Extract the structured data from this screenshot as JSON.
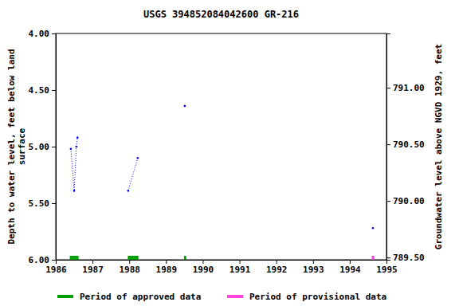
{
  "chart_data": {
    "type": "line",
    "title": "USGS 394852084042600 GR-216",
    "ylabel": "Depth to water level, feet below land\nsurface",
    "y2label": "Groundwater level above NGVD 1929, feet",
    "xlim": [
      1986,
      1995
    ],
    "xticks": [
      1986,
      1987,
      1988,
      1989,
      1990,
      1991,
      1992,
      1993,
      1994,
      1995
    ],
    "ylim": [
      6.0,
      4.0
    ],
    "yticks": [
      {
        "value": 4.0,
        "label": "4.00"
      },
      {
        "value": 4.5,
        "label": "4.50"
      },
      {
        "value": 5.0,
        "label": "5.00"
      },
      {
        "value": 5.5,
        "label": "5.50"
      },
      {
        "value": 6.0,
        "label": "6.00"
      }
    ],
    "y2lim": [
      789.48,
      791.48
    ],
    "y2ticks": [
      {
        "value": 789.5,
        "label": "789.50"
      },
      {
        "value": 790.0,
        "label": "790.00"
      },
      {
        "value": 790.5,
        "label": "790.50"
      },
      {
        "value": 791.0,
        "label": "791.00"
      }
    ],
    "grid": false,
    "series": [
      {
        "color": "#0000ff",
        "marker": "point",
        "line_style": "dotted",
        "x": [
          1986.41,
          1986.5,
          1986.56,
          1986.59
        ],
        "values": [
          5.02,
          5.39,
          5.0,
          4.92
        ]
      },
      {
        "color": "#0000ff",
        "marker": "point",
        "line_style": "dotted",
        "x": [
          1987.97,
          1988.23
        ],
        "values": [
          5.39,
          5.1
        ]
      },
      {
        "color": "#0000ff",
        "marker": "point",
        "line_style": "dotted",
        "x": [
          1989.51
        ],
        "values": [
          4.64
        ]
      },
      {
        "color": "#0000ff",
        "marker": "point",
        "line_style": "dotted",
        "x": [
          1994.63
        ],
        "values": [
          5.72
        ]
      }
    ],
    "periods": [
      {
        "name": "Period of approved data",
        "color": "#00a000",
        "ranges": [
          [
            1986.38,
            1986.62
          ],
          [
            1987.96,
            1988.25
          ],
          [
            1989.49,
            1989.55
          ]
        ]
      },
      {
        "name": "Period of provisional data",
        "color": "#ff44dd",
        "ranges": [
          [
            1994.6,
            1994.67
          ]
        ]
      }
    ]
  }
}
